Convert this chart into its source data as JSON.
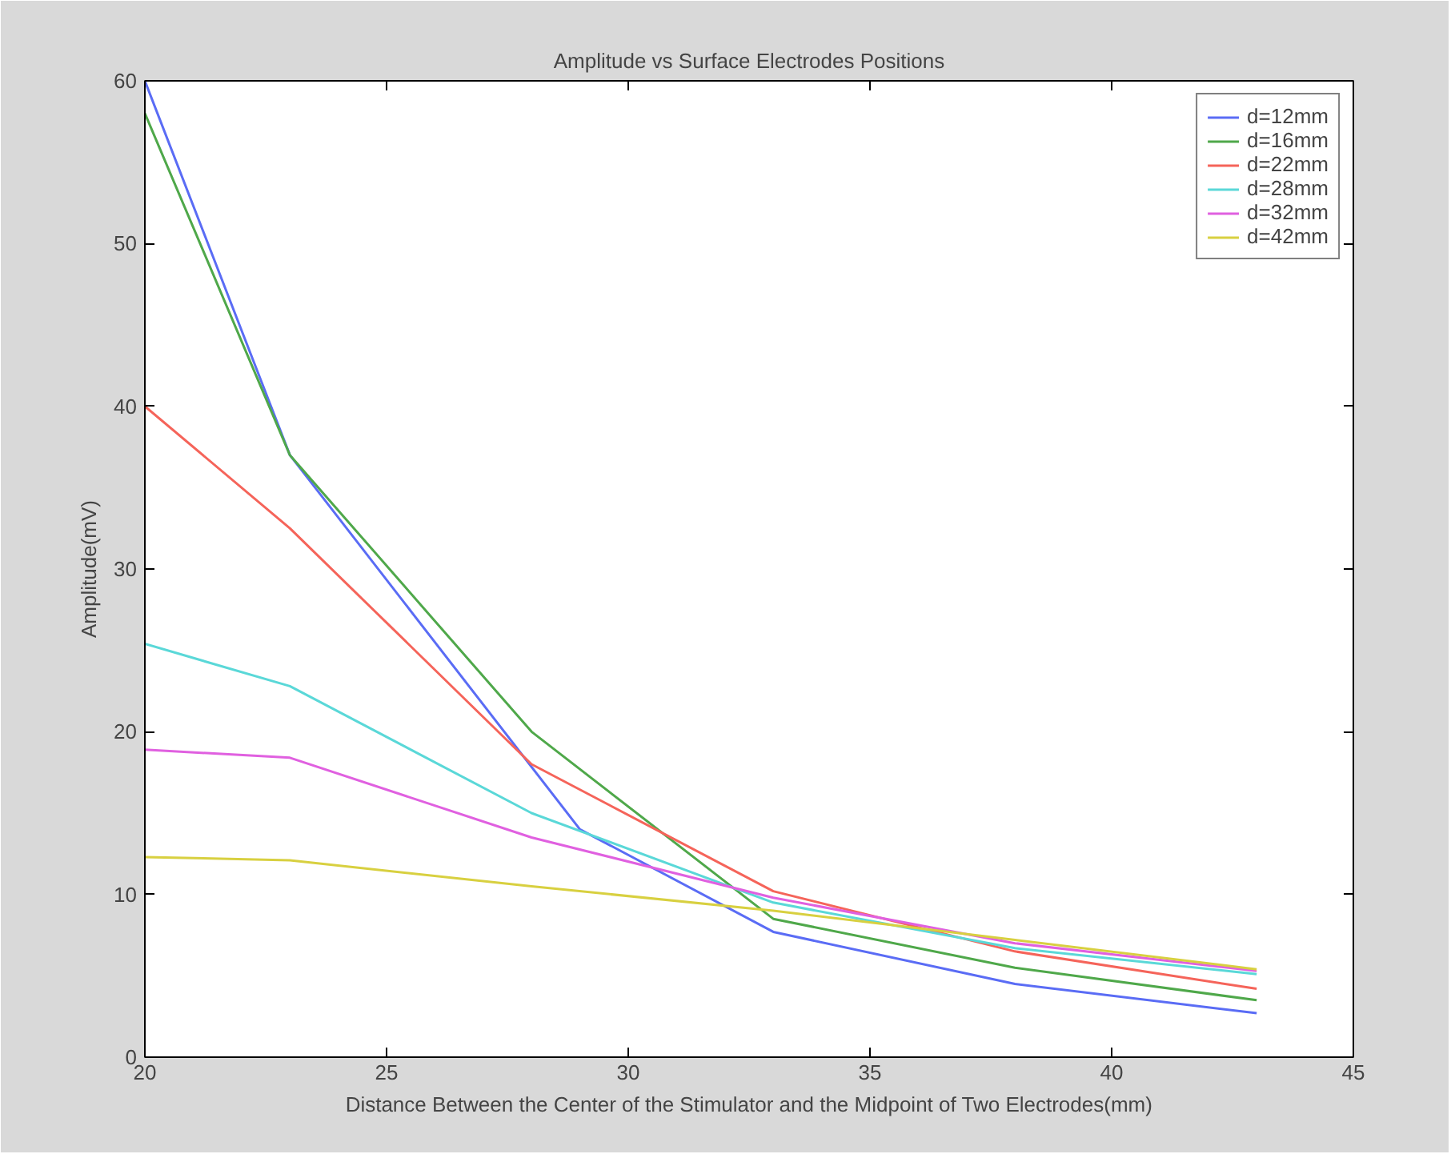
{
  "chart_data": {
    "type": "line",
    "title": "Amplitude vs Surface Electrodes Positions",
    "xlabel": "Distance Between the Center of the Stimulator and the Midpoint of Two Electrodes(mm)",
    "ylabel": "Amplitude(mV)",
    "xlim": [
      20,
      45
    ],
    "ylim": [
      0,
      60
    ],
    "xticks": [
      20,
      25,
      30,
      35,
      40,
      45
    ],
    "yticks": [
      0,
      10,
      20,
      30,
      40,
      50,
      60
    ],
    "grid": false,
    "legend": "top right",
    "series": [
      {
        "name": "d=12mm",
        "color": "#5a6cf5",
        "x": [
          20,
          23,
          29,
          33,
          38,
          43
        ],
        "values": [
          60,
          37,
          14,
          7.7,
          4.5,
          2.7
        ]
      },
      {
        "name": "d=16mm",
        "color": "#4fa84a",
        "x": [
          20,
          23,
          28,
          33,
          38,
          43
        ],
        "values": [
          58,
          37,
          20,
          8.5,
          5.5,
          3.5
        ]
      },
      {
        "name": "d=22mm",
        "color": "#f5645a",
        "x": [
          20,
          23,
          28,
          33,
          38,
          43
        ],
        "values": [
          40,
          32.5,
          18,
          10.2,
          6.5,
          4.2
        ]
      },
      {
        "name": "d=28mm",
        "color": "#5ad8d8",
        "x": [
          20,
          23,
          28,
          33,
          38,
          43
        ],
        "values": [
          25.4,
          22.8,
          15,
          9.5,
          6.7,
          5.1
        ]
      },
      {
        "name": "d=32mm",
        "color": "#e060e0",
        "x": [
          20,
          23,
          28,
          33,
          38,
          43
        ],
        "values": [
          18.9,
          18.4,
          13.5,
          9.8,
          7,
          5.3
        ]
      },
      {
        "name": "d=42mm",
        "color": "#d8d040",
        "x": [
          20,
          23,
          28,
          33,
          38,
          43
        ],
        "values": [
          12.3,
          12.1,
          10.5,
          9,
          7.2,
          5.4
        ]
      }
    ]
  }
}
